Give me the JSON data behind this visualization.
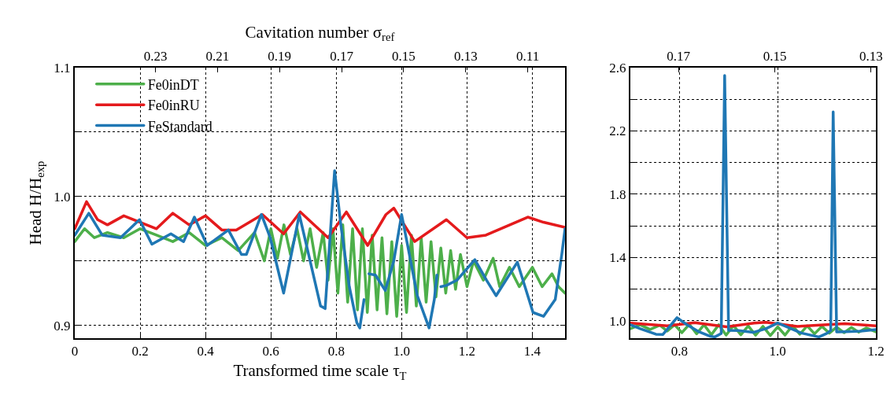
{
  "chart_data": [
    {
      "type": "line",
      "xlabel": "Transformed time scale τ$_{T}$",
      "ylabel": "Head H/H$_{exp}$",
      "x2label": "Cavitation number σ$_{ref}$",
      "xlim": [
        0,
        1.5
      ],
      "xticks": [
        0,
        0.2,
        0.4,
        0.6,
        0.8,
        {
          "value": 1,
          "label": "1.0"
        },
        1.2,
        1.4
      ],
      "ylim": [
        0.89,
        1.1
      ],
      "yticks": [
        0.9,
        {
          "value": 0.95,
          "label": null
        },
        {
          "value": 1,
          "label": "1.0"
        },
        {
          "value": 1.05,
          "label": null
        },
        1.1
      ],
      "x2lim": [
        0.256,
        0.098
      ],
      "x2ticks": [
        0.23,
        0.21,
        0.19,
        0.17,
        0.15,
        0.13,
        0.11
      ],
      "grid": true,
      "legend": "top left",
      "line_style": "solid",
      "series": [
        {
          "name": "Fe0inDT",
          "color": "#4daf4a",
          "x": [
            0,
            0.03,
            0.06,
            0.1,
            0.15,
            0.2,
            0.25,
            0.3,
            0.35,
            0.4,
            0.45,
            0.5,
            0.55,
            0.58,
            0.6,
            0.62,
            0.64,
            0.66,
            0.68,
            0.7,
            0.72,
            0.74,
            0.76,
            0.775,
            0.79,
            0.805,
            0.82,
            0.835,
            0.85,
            0.865,
            0.88,
            0.895,
            0.91,
            0.925,
            0.94,
            0.955,
            0.97,
            0.985,
            1.0,
            1.015,
            1.03,
            1.045,
            1.06,
            1.075,
            1.09,
            1.105,
            1.12,
            1.135,
            1.15,
            1.165,
            1.18,
            1.2,
            1.22,
            1.25,
            1.28,
            1.3,
            1.33,
            1.36,
            1.4,
            1.43,
            1.46,
            1.48,
            1.5
          ],
          "values": [
            0.965,
            0.975,
            0.968,
            0.972,
            0.968,
            0.975,
            0.97,
            0.965,
            0.972,
            0.962,
            0.968,
            0.958,
            0.972,
            0.95,
            0.975,
            0.952,
            0.978,
            0.955,
            0.975,
            0.95,
            0.975,
            0.945,
            0.972,
            0.935,
            0.975,
            0.925,
            0.978,
            0.918,
            0.975,
            0.912,
            0.975,
            0.91,
            0.97,
            0.912,
            0.968,
            0.909,
            0.965,
            0.907,
            0.962,
            0.91,
            0.97,
            0.915,
            0.968,
            0.918,
            0.965,
            0.922,
            0.96,
            0.925,
            0.958,
            0.928,
            0.955,
            0.93,
            0.95,
            0.935,
            0.952,
            0.93,
            0.945,
            0.93,
            0.945,
            0.93,
            0.94,
            0.93,
            0.925
          ]
        },
        {
          "name": "Fe0inRU",
          "color": "#e41a1c",
          "x": [
            0,
            0.036,
            0.07,
            0.1,
            0.15,
            0.2,
            0.25,
            0.3,
            0.35,
            0.4,
            0.45,
            0.494,
            0.574,
            0.639,
            0.69,
            0.775,
            0.831,
            0.896,
            0.952,
            0.976,
            1.04,
            1.137,
            1.2,
            1.258,
            1.386,
            1.434,
            1.5
          ],
          "values": [
            0.975,
            0.996,
            0.982,
            0.978,
            0.985,
            0.98,
            0.975,
            0.987,
            0.978,
            0.985,
            0.974,
            0.974,
            0.986,
            0.971,
            0.988,
            0.968,
            0.988,
            0.962,
            0.986,
            0.991,
            0.965,
            0.982,
            0.968,
            0.97,
            0.984,
            0.98,
            0.976
          ]
        },
        {
          "name": "FeStandard",
          "color": "#1f77b4",
          "x": [
            0,
            0.043,
            0.084,
            0.14,
            0.198,
            0.236,
            0.294,
            0.333,
            0.366,
            0.405,
            0.47,
            0.51,
            0.525,
            0.571,
            0.598,
            0.639,
            0.687,
            0.72,
            0.752,
            0.766,
            0.795,
            0.815,
            0.84,
            0.863,
            0.872,
            0.885,
            0.892,
            0.9,
            0.92,
            0.95,
            0.976,
            1.0,
            1.02,
            1.048,
            1.084,
            1.1,
            1.108,
            1.113,
            1.12,
            1.137,
            1.169,
            1.224,
            1.26,
            1.289,
            1.354,
            1.402,
            1.434,
            1.47,
            1.49,
            1.5
          ],
          "values": [
            0.97,
            0.987,
            0.97,
            0.968,
            0.982,
            0.963,
            0.971,
            0.965,
            0.984,
            0.962,
            0.974,
            0.955,
            0.955,
            0.986,
            0.968,
            0.925,
            0.986,
            0.95,
            0.915,
            0.913,
            1.02,
            0.976,
            0.93,
            0.902,
            0.898,
            0.92,
            null,
            0.94,
            0.939,
            0.927,
            0.95,
            0.986,
            0.96,
            0.923,
            0.898,
            0.92,
            0.939,
            null,
            0.93,
            0.931,
            0.935,
            0.951,
            0.935,
            0.923,
            0.949,
            0.91,
            0.907,
            0.92,
            0.955,
            0.975
          ]
        }
      ]
    },
    {
      "type": "line",
      "xlim": [
        0.7,
        1.2
      ],
      "xticks": [
        0.8,
        {
          "value": 1,
          "label": "1.0"
        },
        1.2
      ],
      "ylim": [
        0.89,
        2.6
      ],
      "yticks": [
        {
          "value": 1,
          "label": "1.0"
        },
        {
          "value": 1.2,
          "label": null
        },
        1.4,
        {
          "value": 1.6,
          "label": null
        },
        1.8,
        {
          "value": 2,
          "label": null
        },
        2.2,
        {
          "value": 2.4,
          "label": null
        },
        2.6
      ],
      "x2lim": [
        0.18,
        0.129
      ],
      "x2ticks": [
        0.17,
        0.15,
        0.13
      ],
      "grid": true,
      "line_style": "solid",
      "series": [
        {
          "color": "#4daf4a",
          "x": [
            0.7,
            0.72,
            0.74,
            0.76,
            0.775,
            0.79,
            0.805,
            0.82,
            0.835,
            0.85,
            0.865,
            0.88,
            0.895,
            0.91,
            0.925,
            0.94,
            0.955,
            0.97,
            0.985,
            1.0,
            1.015,
            1.03,
            1.045,
            1.06,
            1.075,
            1.09,
            1.105,
            1.12,
            1.135,
            1.15,
            1.165,
            1.18,
            1.2
          ],
          "values": [
            0.95,
            0.975,
            0.945,
            0.972,
            0.935,
            0.975,
            0.925,
            0.978,
            0.918,
            0.975,
            0.912,
            0.975,
            0.91,
            0.97,
            0.912,
            0.968,
            0.909,
            0.965,
            0.907,
            0.962,
            0.91,
            0.97,
            0.915,
            0.968,
            0.918,
            0.965,
            0.922,
            0.96,
            0.925,
            0.958,
            0.928,
            0.955,
            0.93
          ]
        },
        {
          "color": "#e41a1c",
          "x": [
            0.7,
            0.775,
            0.831,
            0.896,
            0.952,
            0.976,
            1.04,
            1.137,
            1.2
          ],
          "values": [
            0.986,
            0.968,
            0.988,
            0.962,
            0.986,
            0.991,
            0.965,
            0.982,
            0.968
          ]
        },
        {
          "color": "#1f77b4",
          "x": [
            0.7,
            0.72,
            0.752,
            0.766,
            0.795,
            0.815,
            0.84,
            0.863,
            0.872,
            0.885,
            0.892,
            0.9,
            0.92,
            0.95,
            0.976,
            1.0,
            1.02,
            1.048,
            1.084,
            1.1,
            1.108,
            1.113,
            1.12,
            1.137,
            1.169,
            1.2
          ],
          "values": [
            0.975,
            0.95,
            0.915,
            0.913,
            1.02,
            0.976,
            0.93,
            0.902,
            0.898,
            0.92,
            2.55,
            0.94,
            0.939,
            0.927,
            0.95,
            0.986,
            0.96,
            0.923,
            0.898,
            0.92,
            0.939,
            2.32,
            0.93,
            0.931,
            0.935,
            0.945
          ]
        }
      ]
    }
  ]
}
